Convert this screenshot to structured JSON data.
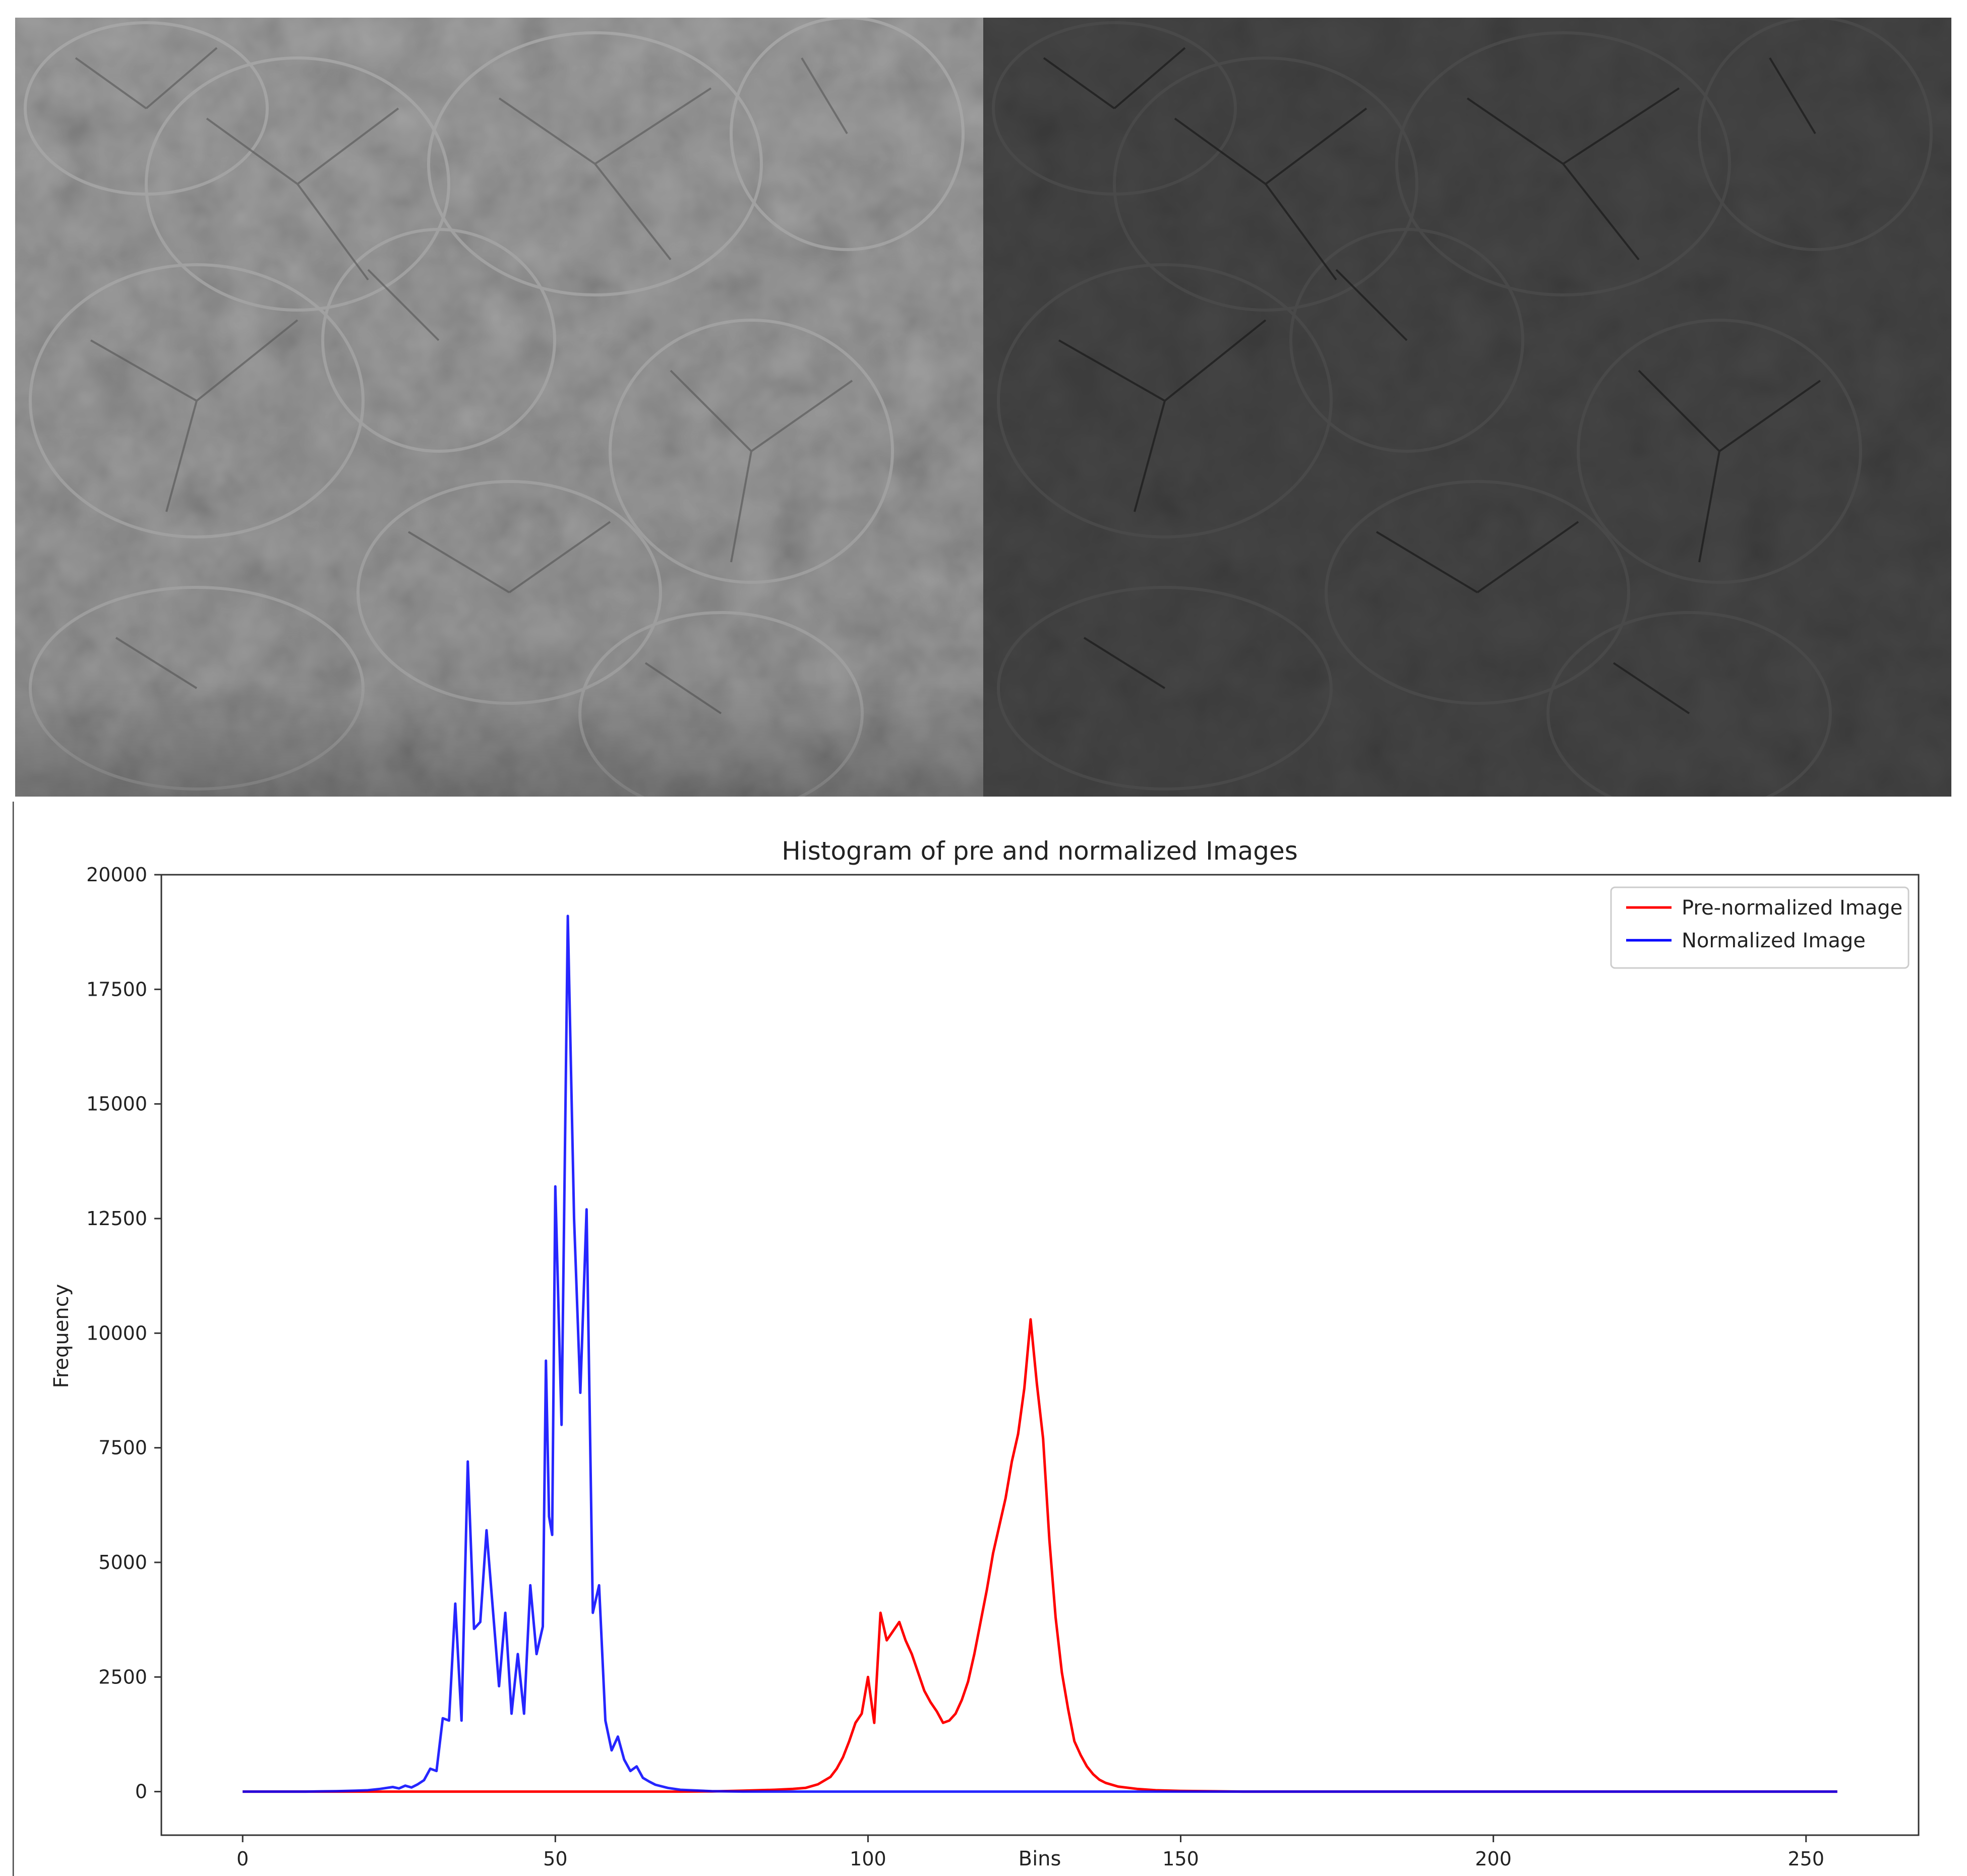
{
  "images": {
    "left": {
      "tone": "light-gray"
    },
    "right": {
      "tone": "dark-gray"
    }
  },
  "chart_data": {
    "type": "line",
    "title": "Histogram of pre and normalized Images",
    "xlabel": "Bins",
    "ylabel": "Frequency",
    "xlim": [
      -13,
      268
    ],
    "ylim": [
      -950,
      20000
    ],
    "xticks": [
      0,
      50,
      100,
      150,
      200,
      250
    ],
    "xtick_labels": [
      "0",
      "50",
      "100",
      "150",
      "200",
      "250"
    ],
    "yticks": [
      0,
      2500,
      5000,
      7500,
      10000,
      12500,
      15000,
      17500,
      20000
    ],
    "ytick_labels": [
      "0",
      "2500",
      "5000",
      "7500",
      "10000",
      "12500",
      "15000",
      "17500",
      "20000"
    ],
    "grid": false,
    "legend_position": "top-right",
    "series": [
      {
        "name": "Pre-normalized Image",
        "color": "#ff0000",
        "points": [
          [
            0,
            0
          ],
          [
            20,
            0
          ],
          [
            40,
            0
          ],
          [
            60,
            0
          ],
          [
            70,
            0
          ],
          [
            75,
            5
          ],
          [
            80,
            20
          ],
          [
            85,
            40
          ],
          [
            88,
            60
          ],
          [
            90,
            80
          ],
          [
            92,
            160
          ],
          [
            94,
            320
          ],
          [
            95,
            500
          ],
          [
            96,
            750
          ],
          [
            97,
            1100
          ],
          [
            98,
            1500
          ],
          [
            99,
            1700
          ],
          [
            100,
            2500
          ],
          [
            101,
            1500
          ],
          [
            102,
            3900
          ],
          [
            103,
            3300
          ],
          [
            104,
            3500
          ],
          [
            105,
            3700
          ],
          [
            106,
            3300
          ],
          [
            107,
            3000
          ],
          [
            108,
            2600
          ],
          [
            109,
            2200
          ],
          [
            110,
            1950
          ],
          [
            111,
            1750
          ],
          [
            112,
            1500
          ],
          [
            113,
            1550
          ],
          [
            114,
            1700
          ],
          [
            115,
            2000
          ],
          [
            116,
            2400
          ],
          [
            117,
            3000
          ],
          [
            118,
            3700
          ],
          [
            119,
            4400
          ],
          [
            120,
            5200
          ],
          [
            121,
            5800
          ],
          [
            122,
            6400
          ],
          [
            123,
            7200
          ],
          [
            124,
            7800
          ],
          [
            125,
            8800
          ],
          [
            126,
            10300
          ],
          [
            127,
            8900
          ],
          [
            128,
            7700
          ],
          [
            129,
            5500
          ],
          [
            130,
            3800
          ],
          [
            131,
            2600
          ],
          [
            132,
            1800
          ],
          [
            133,
            1100
          ],
          [
            134,
            800
          ],
          [
            135,
            550
          ],
          [
            136,
            380
          ],
          [
            137,
            260
          ],
          [
            138,
            190
          ],
          [
            140,
            110
          ],
          [
            143,
            60
          ],
          [
            146,
            30
          ],
          [
            150,
            15
          ],
          [
            160,
            0
          ],
          [
            200,
            0
          ],
          [
            255,
            0
          ]
        ]
      },
      {
        "name": "Normalized Image",
        "color": "#0000ff",
        "points": [
          [
            0,
            0
          ],
          [
            10,
            0
          ],
          [
            15,
            10
          ],
          [
            18,
            20
          ],
          [
            20,
            30
          ],
          [
            22,
            60
          ],
          [
            24,
            100
          ],
          [
            25,
            70
          ],
          [
            26,
            130
          ],
          [
            27,
            90
          ],
          [
            28,
            160
          ],
          [
            29,
            250
          ],
          [
            30,
            500
          ],
          [
            31,
            450
          ],
          [
            32,
            1600
          ],
          [
            33,
            1550
          ],
          [
            34,
            4100
          ],
          [
            35,
            1550
          ],
          [
            36,
            7200
          ],
          [
            37,
            3550
          ],
          [
            38,
            3700
          ],
          [
            39,
            5700
          ],
          [
            40,
            4000
          ],
          [
            41,
            2300
          ],
          [
            42,
            3900
          ],
          [
            43,
            1700
          ],
          [
            44,
            3000
          ],
          [
            45,
            1700
          ],
          [
            46,
            4500
          ],
          [
            47,
            3000
          ],
          [
            48,
            3600
          ],
          [
            48.5,
            9400
          ],
          [
            49,
            6000
          ],
          [
            49.5,
            5600
          ],
          [
            50,
            13200
          ],
          [
            51,
            8000
          ],
          [
            52,
            19100
          ],
          [
            53,
            12500
          ],
          [
            54,
            8700
          ],
          [
            55,
            12700
          ],
          [
            56,
            3900
          ],
          [
            57,
            4500
          ],
          [
            58,
            1550
          ],
          [
            59,
            900
          ],
          [
            60,
            1200
          ],
          [
            61,
            700
          ],
          [
            62,
            450
          ],
          [
            63,
            550
          ],
          [
            64,
            300
          ],
          [
            65,
            220
          ],
          [
            66,
            150
          ],
          [
            68,
            80
          ],
          [
            70,
            40
          ],
          [
            75,
            10
          ],
          [
            80,
            0
          ],
          [
            150,
            0
          ],
          [
            200,
            0
          ],
          [
            255,
            0
          ]
        ]
      }
    ]
  }
}
